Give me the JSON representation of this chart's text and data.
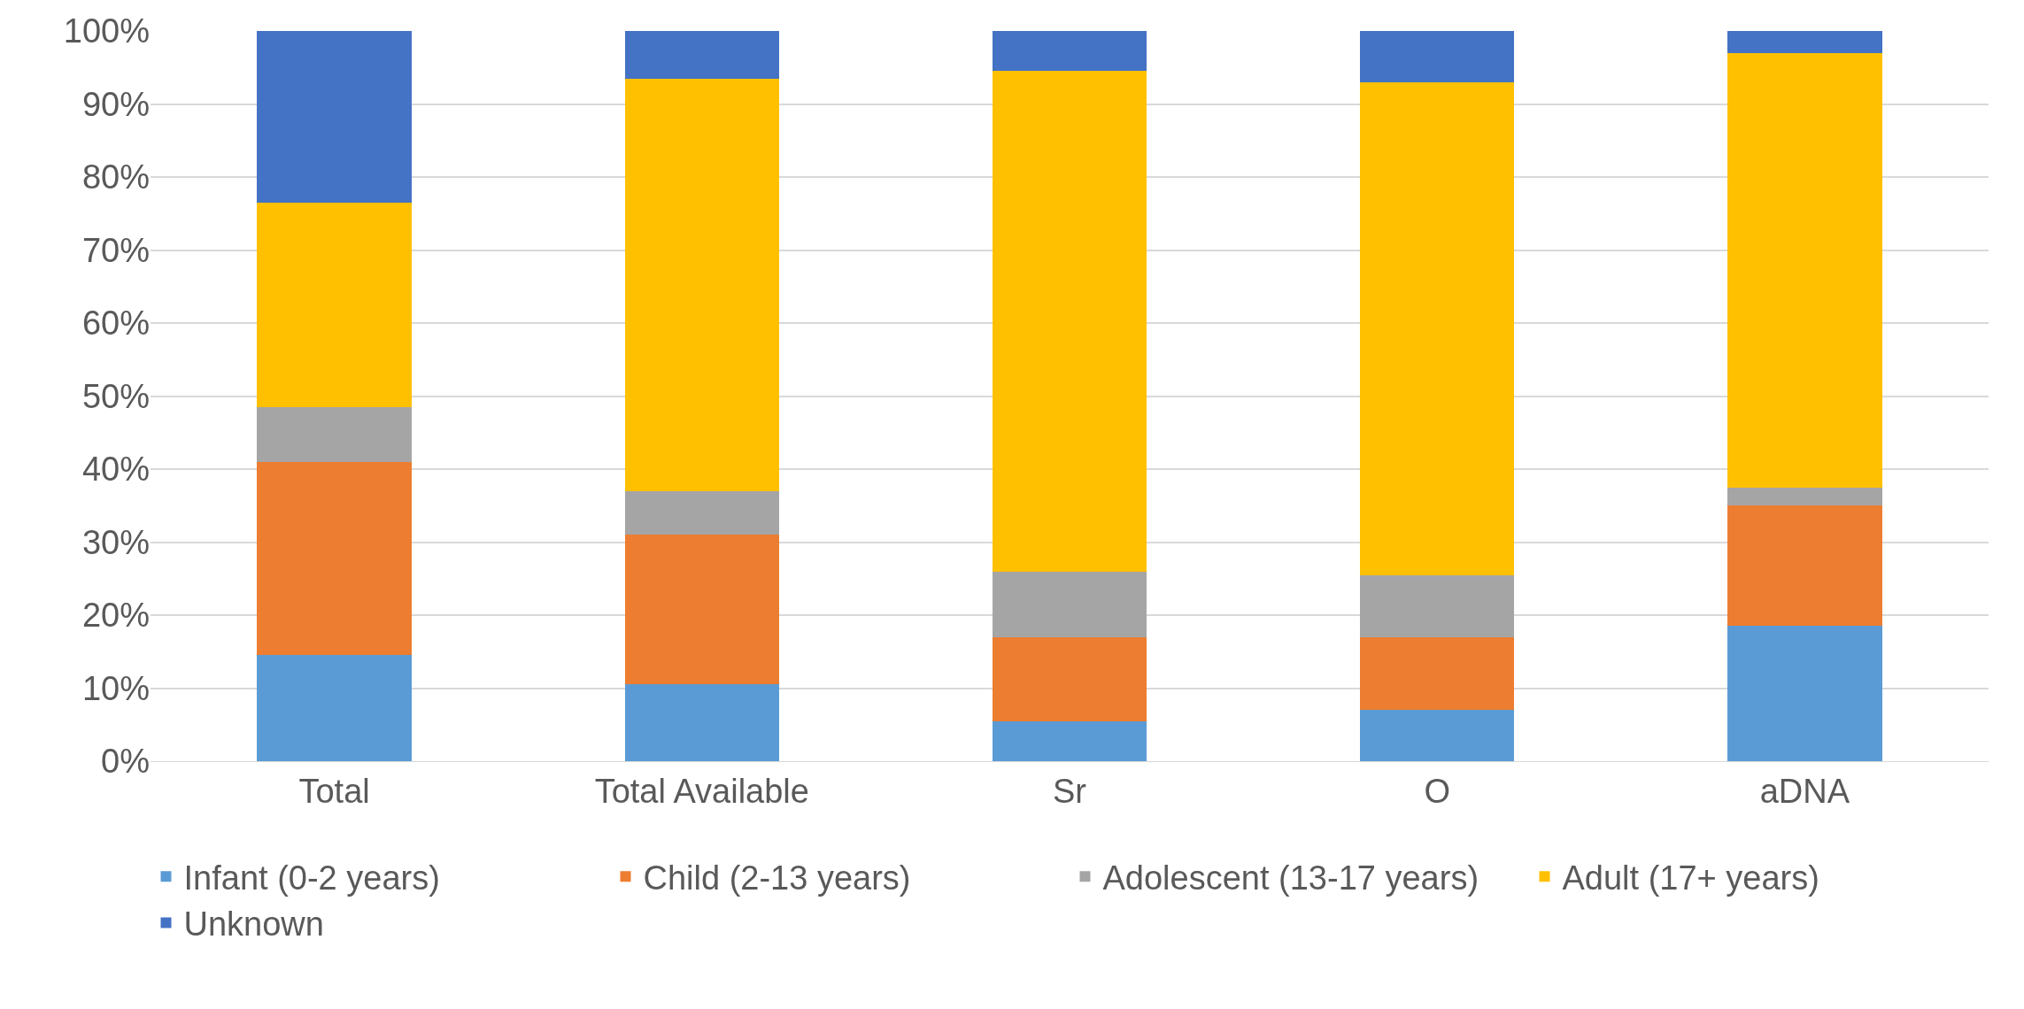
{
  "chart_data": {
    "type": "bar",
    "stacked": true,
    "categories": [
      "Total",
      "Total Available",
      "Sr",
      "O",
      "aDNA"
    ],
    "series": [
      {
        "name": "Infant (0-2 years)",
        "color": "#5b9bd5",
        "values": [
          14.5,
          10.5,
          5.5,
          7,
          18.5
        ]
      },
      {
        "name": "Child (2-13 years)",
        "color": "#ed7d31",
        "values": [
          26.5,
          20.5,
          11.5,
          10,
          16.5
        ]
      },
      {
        "name": "Adolescent (13-17 years)",
        "color": "#a5a5a5",
        "values": [
          7.5,
          6,
          9,
          8.5,
          2.5
        ]
      },
      {
        "name": "Adult (17+ years)",
        "color": "#ffc000",
        "values": [
          28,
          56.5,
          68.5,
          67.5,
          59.5
        ]
      },
      {
        "name": "Unknown",
        "color": "#4472c4",
        "values": [
          23.5,
          6.5,
          5.5,
          7,
          3
        ]
      }
    ],
    "ylim": [
      0,
      100
    ],
    "yticks": [
      {
        "value": 0,
        "label": "0%"
      },
      {
        "value": 10,
        "label": "10%"
      },
      {
        "value": 20,
        "label": "20%"
      },
      {
        "value": 30,
        "label": "30%"
      },
      {
        "value": 40,
        "label": "40%"
      },
      {
        "value": 50,
        "label": "50%"
      },
      {
        "value": 60,
        "label": "60%"
      },
      {
        "value": 70,
        "label": "70%"
      },
      {
        "value": 80,
        "label": "80%"
      },
      {
        "value": 90,
        "label": "90%"
      },
      {
        "value": 100,
        "label": "100%"
      }
    ],
    "grid": "y",
    "legend": "bottom"
  }
}
